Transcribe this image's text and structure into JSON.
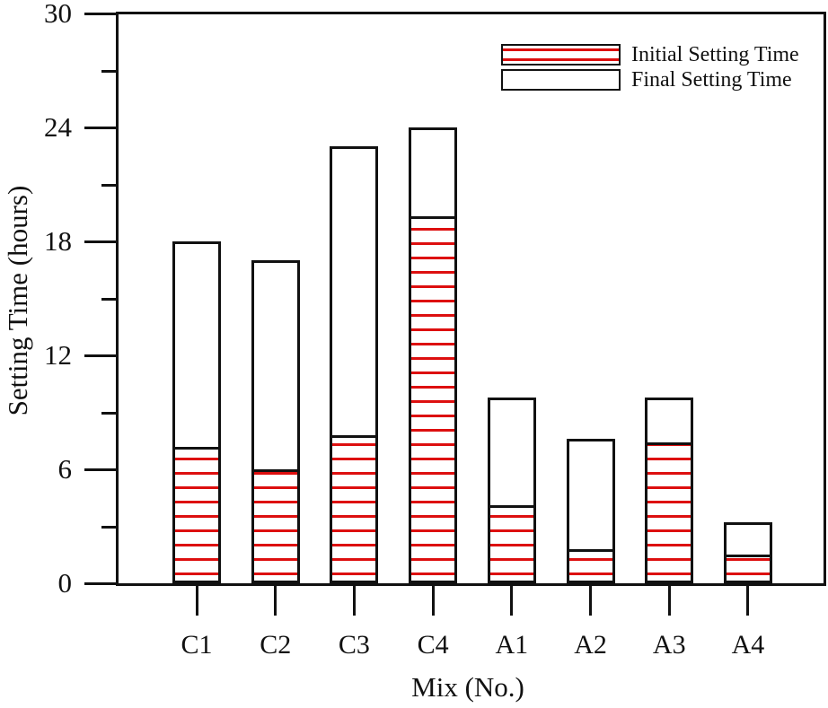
{
  "colors": {
    "hatch_red": "#dd0f0f",
    "line_black": "#111111",
    "background": "#ffffff"
  },
  "chart_data": {
    "type": "bar",
    "title": "",
    "xlabel": "Mix (No.)",
    "ylabel": "Setting Time (hours)",
    "categories": [
      "C1",
      "C2",
      "C3",
      "C4",
      "A1",
      "A2",
      "A3",
      "A4"
    ],
    "series": [
      {
        "name": "Initial Setting Time",
        "style": "red-horizontal-hatch",
        "values": [
          7.2,
          6.0,
          7.8,
          19.3,
          4.1,
          1.8,
          7.4,
          1.5
        ]
      },
      {
        "name": "Final Setting Time",
        "style": "white-empty",
        "values": [
          18.0,
          17.0,
          23.0,
          24.0,
          9.8,
          7.6,
          9.8,
          3.2
        ]
      }
    ],
    "values_are_absolute_bar_tops": true,
    "ylim": [
      0,
      30
    ],
    "yticks_major": [
      0,
      6,
      12,
      18,
      24,
      30
    ],
    "yticks_minor": [
      3,
      9,
      15,
      21,
      27
    ],
    "grid": false,
    "legend_position": "top-right",
    "bar_outline_color": "#111111",
    "hatch_color": "#dd0f0f"
  }
}
